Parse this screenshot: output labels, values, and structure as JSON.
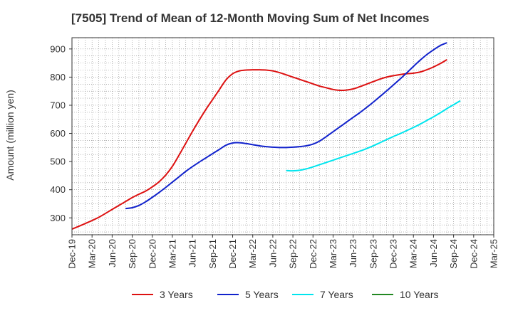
{
  "chart_data": {
    "type": "line",
    "title": "[7505]  Trend of Mean of 12-Month Moving Sum of Net Incomes",
    "xlabel": "",
    "ylabel": "Amount (million yen)",
    "ylim": [
      240,
      940
    ],
    "yticks": [
      300,
      400,
      500,
      600,
      700,
      800,
      900
    ],
    "xlim": [
      "2019-12",
      "2025-03"
    ],
    "x_tick_labels": [
      "Dec-19",
      "Mar-20",
      "Jun-20",
      "Sep-20",
      "Dec-20",
      "Mar-21",
      "Jun-21",
      "Sep-21",
      "Dec-21",
      "Mar-22",
      "Jun-22",
      "Sep-22",
      "Dec-22",
      "Mar-23",
      "Jun-23",
      "Sep-23",
      "Dec-23",
      "Mar-24",
      "Jun-24",
      "Sep-24",
      "Dec-24",
      "Mar-25"
    ],
    "grid": true,
    "legend_position": "bottom",
    "series": [
      {
        "name": "3 Years",
        "color": "#dd1111",
        "points": [
          [
            "2019-12",
            260
          ],
          [
            "2020-02",
            280
          ],
          [
            "2020-04",
            302
          ],
          [
            "2020-06",
            330
          ],
          [
            "2020-08",
            358
          ],
          [
            "2020-09",
            372
          ],
          [
            "2020-10",
            384
          ],
          [
            "2020-11",
            395
          ],
          [
            "2020-12",
            410
          ],
          [
            "2021-01",
            428
          ],
          [
            "2021-02",
            452
          ],
          [
            "2021-03",
            483
          ],
          [
            "2021-04",
            523
          ],
          [
            "2021-05",
            565
          ],
          [
            "2021-06",
            607
          ],
          [
            "2021-07",
            647
          ],
          [
            "2021-08",
            685
          ],
          [
            "2021-09",
            720
          ],
          [
            "2021-10",
            755
          ],
          [
            "2021-11",
            790
          ],
          [
            "2021-12",
            812
          ],
          [
            "2022-01",
            822
          ],
          [
            "2022-02",
            825
          ],
          [
            "2022-03",
            826
          ],
          [
            "2022-04",
            826
          ],
          [
            "2022-05",
            825
          ],
          [
            "2022-06",
            822
          ],
          [
            "2022-07",
            816
          ],
          [
            "2022-08",
            808
          ],
          [
            "2022-09",
            800
          ],
          [
            "2022-10",
            792
          ],
          [
            "2022-11",
            784
          ],
          [
            "2022-12",
            776
          ],
          [
            "2023-01",
            768
          ],
          [
            "2023-02",
            762
          ],
          [
            "2023-03",
            756
          ],
          [
            "2023-04",
            753
          ],
          [
            "2023-05",
            754
          ],
          [
            "2023-06",
            758
          ],
          [
            "2023-07",
            766
          ],
          [
            "2023-08",
            775
          ],
          [
            "2023-09",
            784
          ],
          [
            "2023-10",
            793
          ],
          [
            "2023-11",
            800
          ],
          [
            "2023-12",
            805
          ],
          [
            "2024-01",
            809
          ],
          [
            "2024-02",
            812
          ],
          [
            "2024-03",
            814
          ],
          [
            "2024-04",
            818
          ],
          [
            "2024-05",
            826
          ],
          [
            "2024-06",
            836
          ],
          [
            "2024-07",
            848
          ],
          [
            "2024-08",
            862
          ]
        ]
      },
      {
        "name": "5 Years",
        "color": "#1122cc",
        "points": [
          [
            "2020-08",
            333
          ],
          [
            "2020-09",
            336
          ],
          [
            "2020-10",
            344
          ],
          [
            "2020-11",
            357
          ],
          [
            "2020-12",
            373
          ],
          [
            "2021-01",
            390
          ],
          [
            "2021-02",
            408
          ],
          [
            "2021-03",
            427
          ],
          [
            "2021-04",
            446
          ],
          [
            "2021-05",
            465
          ],
          [
            "2021-06",
            482
          ],
          [
            "2021-07",
            498
          ],
          [
            "2021-08",
            513
          ],
          [
            "2021-09",
            528
          ],
          [
            "2021-10",
            543
          ],
          [
            "2021-11",
            558
          ],
          [
            "2021-12",
            566
          ],
          [
            "2022-01",
            567
          ],
          [
            "2022-02",
            564
          ],
          [
            "2022-03",
            560
          ],
          [
            "2022-04",
            556
          ],
          [
            "2022-05",
            553
          ],
          [
            "2022-06",
            551
          ],
          [
            "2022-07",
            550
          ],
          [
            "2022-08",
            550
          ],
          [
            "2022-09",
            551
          ],
          [
            "2022-10",
            553
          ],
          [
            "2022-11",
            556
          ],
          [
            "2022-12",
            562
          ],
          [
            "2023-01",
            573
          ],
          [
            "2023-02",
            589
          ],
          [
            "2023-03",
            606
          ],
          [
            "2023-04",
            623
          ],
          [
            "2023-05",
            640
          ],
          [
            "2023-06",
            657
          ],
          [
            "2023-07",
            674
          ],
          [
            "2023-08",
            692
          ],
          [
            "2023-09",
            711
          ],
          [
            "2023-10",
            731
          ],
          [
            "2023-11",
            751
          ],
          [
            "2023-12",
            772
          ],
          [
            "2024-01",
            793
          ],
          [
            "2024-02",
            815
          ],
          [
            "2024-03",
            838
          ],
          [
            "2024-04",
            860
          ],
          [
            "2024-05",
            880
          ],
          [
            "2024-06",
            897
          ],
          [
            "2024-07",
            912
          ],
          [
            "2024-08",
            922
          ]
        ]
      },
      {
        "name": "7 Years",
        "color": "#00e5ee",
        "points": [
          [
            "2022-08",
            468
          ],
          [
            "2022-09",
            467
          ],
          [
            "2022-10",
            469
          ],
          [
            "2022-11",
            474
          ],
          [
            "2022-12",
            481
          ],
          [
            "2023-01",
            489
          ],
          [
            "2023-02",
            497
          ],
          [
            "2023-03",
            505
          ],
          [
            "2023-04",
            513
          ],
          [
            "2023-05",
            521
          ],
          [
            "2023-06",
            529
          ],
          [
            "2023-07",
            537
          ],
          [
            "2023-08",
            546
          ],
          [
            "2023-09",
            556
          ],
          [
            "2023-10",
            567
          ],
          [
            "2023-11",
            578
          ],
          [
            "2023-12",
            589
          ],
          [
            "2024-01",
            599
          ],
          [
            "2024-02",
            610
          ],
          [
            "2024-03",
            621
          ],
          [
            "2024-04",
            633
          ],
          [
            "2024-05",
            646
          ],
          [
            "2024-06",
            659
          ],
          [
            "2024-07",
            673
          ],
          [
            "2024-08",
            688
          ],
          [
            "2024-09",
            702
          ],
          [
            "2024-10",
            716
          ]
        ]
      },
      {
        "name": "10 Years",
        "color": "#228822",
        "points": []
      }
    ]
  }
}
